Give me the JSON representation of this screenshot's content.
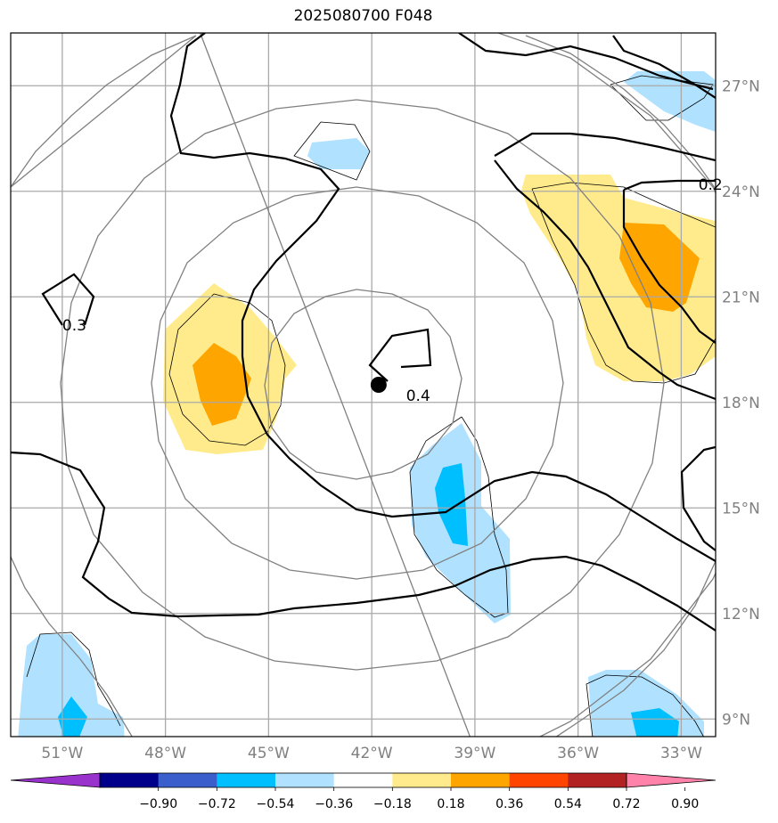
{
  "title": "2025080700 F048",
  "map": {
    "lon_range": [
      -52.5,
      -32.0
    ],
    "lat_range": [
      8.5,
      28.5
    ],
    "lon_ticks": [
      {
        "value": -51,
        "label": "51°W"
      },
      {
        "value": -48,
        "label": "48°W"
      },
      {
        "value": -45,
        "label": "45°W"
      },
      {
        "value": -42,
        "label": "42°W"
      },
      {
        "value": -39,
        "label": "39°W"
      },
      {
        "value": -36,
        "label": "36°W"
      },
      {
        "value": -33,
        "label": "33°W"
      }
    ],
    "lat_ticks": [
      {
        "value": 9,
        "label": "9°N"
      },
      {
        "value": 12,
        "label": "12°N"
      },
      {
        "value": 15,
        "label": "15°N"
      },
      {
        "value": 18,
        "label": "18°N"
      },
      {
        "value": 21,
        "label": "21°N"
      },
      {
        "value": 24,
        "label": "24°N"
      },
      {
        "value": 27,
        "label": "27°N"
      }
    ],
    "center": {
      "lon": -41.8,
      "lat": 18.5
    },
    "contour_labels": [
      {
        "text": "0.4",
        "lon": -41.0,
        "lat": 18.2
      },
      {
        "text": "0.3",
        "lon": -51.0,
        "lat": 20.2
      },
      {
        "text": "0.2",
        "lon": -32.5,
        "lat": 24.2
      }
    ],
    "grid": true
  },
  "colorbar": {
    "colors": [
      "#9932cc",
      "#00008b",
      "#3a5fcd",
      "#00bfff",
      "#b0e2ff",
      "#ffffff",
      "#ffeb8b",
      "#ffa500",
      "#ff4500",
      "#b22222",
      "#ff82ab"
    ],
    "labels": [
      "−0.90",
      "−0.72",
      "−0.54",
      "−0.36",
      "−0.18",
      "0.18",
      "0.36",
      "0.54",
      "0.72",
      "0.90"
    ]
  }
}
